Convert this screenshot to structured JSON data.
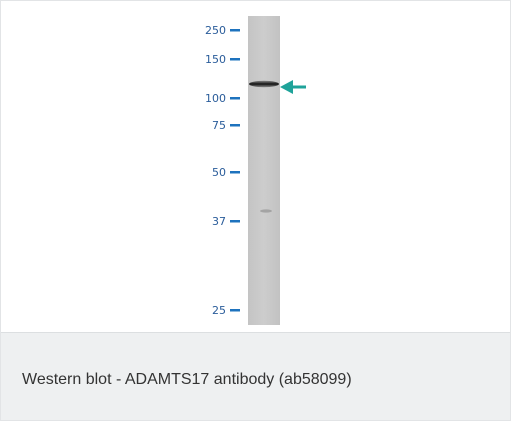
{
  "figure": {
    "markers": [
      "250",
      "150",
      "100",
      "75",
      "50",
      "37",
      "25"
    ],
    "marker_tick_color": "#1e73be",
    "arrow_color": "#1fa39a",
    "arrow_icon": "left-arrow-icon"
  },
  "caption": {
    "text": "Western blot - ADAMTS17 antibody (ab58099)"
  }
}
